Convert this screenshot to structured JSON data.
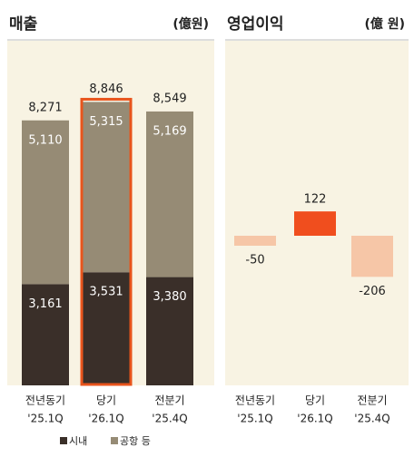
{
  "chart_data": [
    {
      "type": "stacked_bar",
      "title": "매출",
      "unit": "(億원)",
      "categories": [
        "전년동기",
        "당기",
        "전분기"
      ],
      "periods": [
        "'25.1Q",
        "'26.1Q",
        "'25.4Q"
      ],
      "series": [
        {
          "name": "시내",
          "color": "#3a2f29",
          "values": [
            3161,
            3531,
            3380
          ],
          "value_labels": [
            "3,161",
            "3,531",
            "3,380"
          ]
        },
        {
          "name": "공항 등",
          "color": "#968b75",
          "values": [
            5110,
            5315,
            5169
          ],
          "value_labels": [
            "5,110",
            "5,315",
            "5,169"
          ]
        }
      ],
      "totals": {
        "values": [
          8271,
          8846,
          8549
        ],
        "value_labels": [
          "8,271",
          "8,846",
          "8,549"
        ]
      },
      "highlight_category": 1,
      "highlight_color": "#e8541c",
      "ylim": [
        0,
        9000
      ]
    },
    {
      "type": "bar",
      "title": "영업이익",
      "unit": "(億 원)",
      "categories": [
        "전년동기",
        "당기",
        "전분기"
      ],
      "periods": [
        "'25.1Q",
        "'26.1Q",
        "'25.4Q"
      ],
      "values": [
        -50,
        122,
        -206
      ],
      "colors": [
        "#f6c6a7",
        "#f04e1e",
        "#f6c6a7"
      ],
      "ylim": [
        -300,
        300
      ]
    }
  ]
}
